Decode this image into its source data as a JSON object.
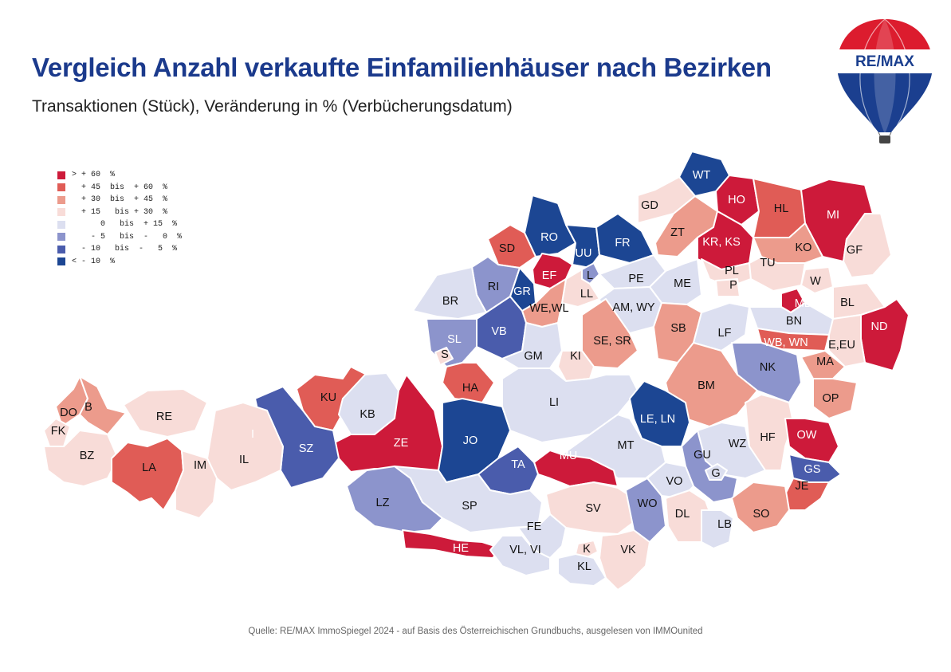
{
  "title": "Vergleich Anzahl verkaufte Einfamilienhäuser nach Bezirken",
  "subtitle": "Transaktionen (Stück), Veränderung in % (Verbücherungsdatum)",
  "logo": {
    "text": "RE/MAX"
  },
  "colors": {
    "c1": "#cd1a3a",
    "c2": "#e05c56",
    "c3": "#ec9b8c",
    "c4": "#f8dcd8",
    "c5": "#dcdff0",
    "c6": "#8c94cc",
    "c7": "#4a5cac",
    "c8": "#1c4693"
  },
  "legend": [
    {
      "label": "> + 60  %",
      "color": "c1"
    },
    {
      "label": "  + 45  bis  + 60  %",
      "color": "c2"
    },
    {
      "label": "  + 30  bis  + 45  %",
      "color": "c3"
    },
    {
      "label": "  + 15   bis + 30  %",
      "color": "c4"
    },
    {
      "label": "      0   bis  + 15  %",
      "color": "c5"
    },
    {
      "label": "    - 5   bis  -   0  %",
      "color": "c6"
    },
    {
      "label": "  - 10   bis  -   5  %",
      "color": "c7"
    },
    {
      "label": "< - 10  %",
      "color": "c8"
    }
  ],
  "districts": [
    {
      "code": "WT",
      "category": "c8"
    },
    {
      "code": "HO",
      "category": "c1"
    },
    {
      "code": "HL",
      "category": "c2"
    },
    {
      "code": "MI",
      "category": "c1"
    },
    {
      "code": "GD",
      "category": "c4"
    },
    {
      "code": "ZT",
      "category": "c3"
    },
    {
      "code": "KR, KS",
      "category": "c1"
    },
    {
      "code": "KO",
      "category": "c3"
    },
    {
      "code": "GF",
      "category": "c4"
    },
    {
      "code": "RO",
      "category": "c8"
    },
    {
      "code": "UU",
      "category": "c8"
    },
    {
      "code": "FR",
      "category": "c8"
    },
    {
      "code": "SD",
      "category": "c2"
    },
    {
      "code": "EF",
      "category": "c1"
    },
    {
      "code": "L",
      "category": "c6"
    },
    {
      "code": "PE",
      "category": "c5"
    },
    {
      "code": "ME",
      "category": "c5"
    },
    {
      "code": "PL",
      "category": "c4"
    },
    {
      "code": "P",
      "category": "c4"
    },
    {
      "code": "TU",
      "category": "c4"
    },
    {
      "code": "W",
      "category": "c4"
    },
    {
      "code": "RI",
      "category": "c6"
    },
    {
      "code": "GR",
      "category": "c8"
    },
    {
      "code": "LL",
      "category": "c4"
    },
    {
      "code": "BR",
      "category": "c5"
    },
    {
      "code": "WE,WL",
      "category": "c3"
    },
    {
      "code": "AM, WY",
      "category": "c5"
    },
    {
      "code": "MD",
      "category": "c1"
    },
    {
      "code": "BL",
      "category": "c4"
    },
    {
      "code": "ND",
      "category": "c1"
    },
    {
      "code": "VB",
      "category": "c7"
    },
    {
      "code": "SL",
      "category": "c6"
    },
    {
      "code": "SB",
      "category": "c3"
    },
    {
      "code": "LF",
      "category": "c5"
    },
    {
      "code": "BN",
      "category": "c5"
    },
    {
      "code": "SE, SR",
      "category": "c3"
    },
    {
      "code": "S",
      "category": "c4"
    },
    {
      "code": "GM",
      "category": "c5"
    },
    {
      "code": "KI",
      "category": "c4"
    },
    {
      "code": "WB, WN",
      "category": "c2"
    },
    {
      "code": "E,EU",
      "category": "c4"
    },
    {
      "code": "NK",
      "category": "c6"
    },
    {
      "code": "MA",
      "category": "c3"
    },
    {
      "code": "HA",
      "category": "c2"
    },
    {
      "code": "BM",
      "category": "c3"
    },
    {
      "code": "OP",
      "category": "c3"
    },
    {
      "code": "DO",
      "category": "c3"
    },
    {
      "code": "B",
      "category": "c3"
    },
    {
      "code": "KU",
      "category": "c2"
    },
    {
      "code": "RE",
      "category": "c4"
    },
    {
      "code": "KB",
      "category": "c5"
    },
    {
      "code": "LI",
      "category": "c5"
    },
    {
      "code": "FK",
      "category": "c4"
    },
    {
      "code": "LE, LN",
      "category": "c8"
    },
    {
      "code": "HF",
      "category": "c4"
    },
    {
      "code": "I",
      "category": "c2"
    },
    {
      "code": "OW",
      "category": "c1"
    },
    {
      "code": "ZE",
      "category": "c1"
    },
    {
      "code": "JO",
      "category": "c8"
    },
    {
      "code": "SZ",
      "category": "c7"
    },
    {
      "code": "BZ",
      "category": "c4"
    },
    {
      "code": "IL",
      "category": "c4"
    },
    {
      "code": "MT",
      "category": "c5"
    },
    {
      "code": "WZ",
      "category": "c5"
    },
    {
      "code": "MU",
      "category": "c1"
    },
    {
      "code": "LA",
      "category": "c2"
    },
    {
      "code": "IM",
      "category": "c4"
    },
    {
      "code": "GU",
      "category": "c6"
    },
    {
      "code": "GS",
      "category": "c7"
    },
    {
      "code": "G",
      "category": "c5"
    },
    {
      "code": "TA",
      "category": "c7"
    },
    {
      "code": "VO",
      "category": "c5"
    },
    {
      "code": "JE",
      "category": "c2"
    },
    {
      "code": "LZ",
      "category": "c6"
    },
    {
      "code": "SV",
      "category": "c4"
    },
    {
      "code": "WO",
      "category": "c6"
    },
    {
      "code": "SP",
      "category": "c5"
    },
    {
      "code": "DL",
      "category": "c4"
    },
    {
      "code": "SO",
      "category": "c3"
    },
    {
      "code": "FE",
      "category": "c5"
    },
    {
      "code": "LB",
      "category": "c5"
    },
    {
      "code": "HE",
      "category": "c1"
    },
    {
      "code": "VL, VI",
      "category": "c5"
    },
    {
      "code": "K",
      "category": "c4"
    },
    {
      "code": "VK",
      "category": "c4"
    },
    {
      "code": "KL",
      "category": "c5"
    }
  ],
  "source": "Quelle: RE/MAX ImmoSpiegel 2024 - auf Basis des Österreichischen Grundbuchs, ausgelesen von IMMOunited"
}
